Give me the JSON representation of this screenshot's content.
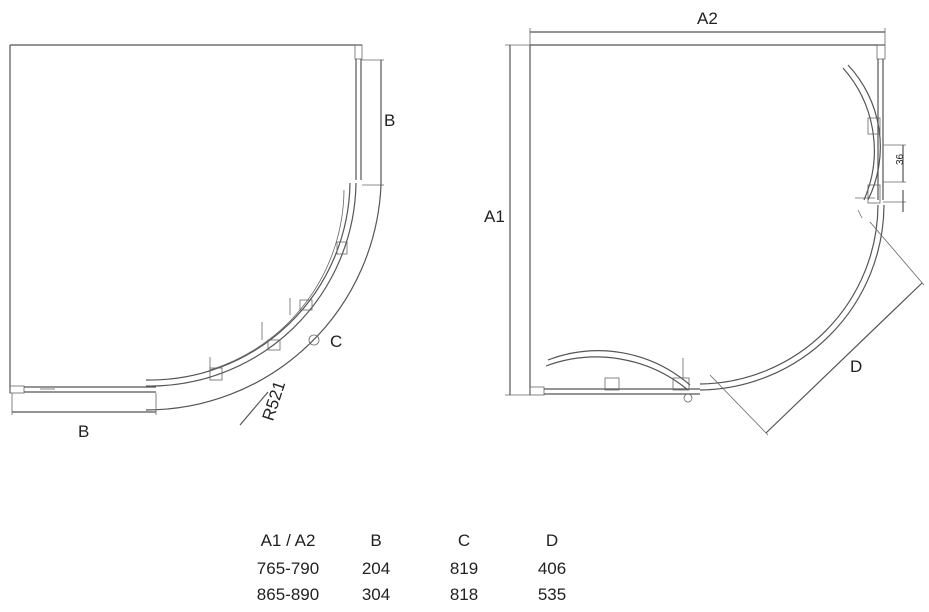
{
  "left_view": {
    "label_b_side": "B",
    "label_b_bottom": "B",
    "label_c": "C",
    "label_radius": "R521"
  },
  "right_view": {
    "label_a2": "A2",
    "label_a1": "A1",
    "label_36": "36",
    "label_d": "D"
  },
  "spec_table": {
    "headers": [
      "A1 / A2",
      "B",
      "C",
      "D"
    ],
    "rows": [
      [
        "765-790",
        "204",
        "819",
        "406"
      ],
      [
        "865-890",
        "304",
        "818",
        "535"
      ]
    ]
  }
}
